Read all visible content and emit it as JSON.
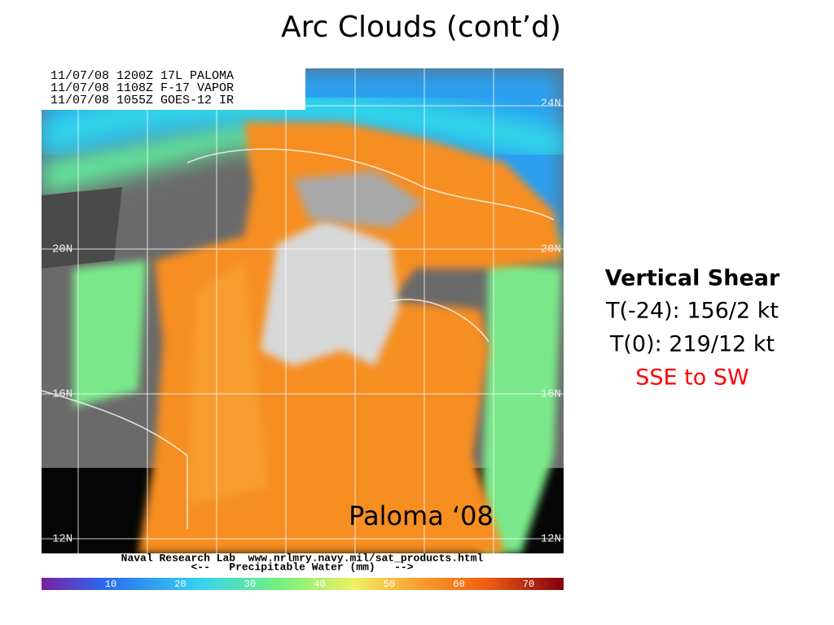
{
  "title": "Arc Clouds (cont’d)",
  "image": {
    "header_lines": [
      "11/07/08 1200Z 17L PALOMA",
      "11/07/08 1108Z F-17 VAPOR",
      "11/07/08 1055Z GOES-12 IR"
    ],
    "left_labels": [
      "20N",
      "16N",
      "12N"
    ],
    "right_labels": [
      "24N",
      "20N",
      "16N",
      "12N"
    ],
    "footer_lines": [
      "Naval Research Lab  www.nrlmry.navy.mil/sat_products.html",
      "<--   Precipitable Water (mm)   -->"
    ],
    "colorbar_ticks": [
      10,
      20,
      30,
      40,
      50,
      60,
      70
    ],
    "caption": "Paloma ‘08"
  },
  "notes": {
    "heading": "Vertical Shear",
    "lines": [
      "T(-24): 156/2 kt",
      "T(0): 219/12 kt"
    ],
    "direction": "SSE to SW"
  }
}
